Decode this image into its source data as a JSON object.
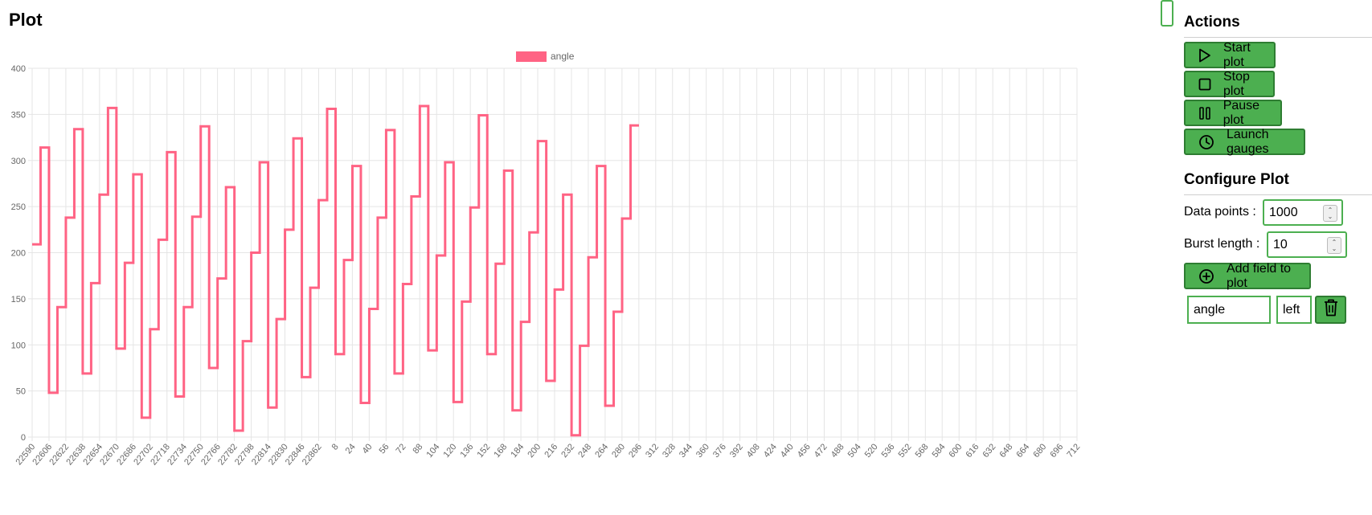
{
  "page": {
    "title": "Plot"
  },
  "chart_data": {
    "type": "line",
    "series": [
      {
        "name": "angle",
        "color": "#ff6384",
        "step": 8,
        "values": [
          209,
          314,
          48,
          141,
          238,
          334,
          69,
          167,
          263,
          357,
          96,
          189,
          285,
          21,
          117,
          214,
          309,
          44,
          141,
          239,
          337,
          75,
          172,
          271,
          7,
          104,
          200,
          298,
          32,
          128,
          225,
          324,
          65,
          162,
          257,
          356,
          90,
          192,
          294,
          37,
          139,
          238,
          333,
          69,
          166,
          261,
          359,
          94,
          197,
          298,
          38,
          147,
          249,
          349,
          90,
          188,
          289,
          29,
          125,
          222,
          321,
          61,
          160,
          263,
          2,
          99,
          195,
          294,
          34,
          136,
          237,
          338
        ]
      }
    ],
    "ylim": [
      0,
      400
    ],
    "yticks": [
      0,
      50,
      100,
      150,
      200,
      250,
      300,
      350,
      400
    ],
    "xtick_labels": [
      "22590",
      "22606",
      "22622",
      "22638",
      "22654",
      "22670",
      "22686",
      "22702",
      "22718",
      "22734",
      "22750",
      "22766",
      "22782",
      "22798",
      "22814",
      "22830",
      "22846",
      "22862",
      "8",
      "24",
      "40",
      "56",
      "72",
      "88",
      "104",
      "120",
      "136",
      "152",
      "168",
      "184",
      "200",
      "216",
      "232",
      "248",
      "264",
      "280",
      "296",
      "312",
      "328",
      "344",
      "360",
      "376",
      "392",
      "408",
      "424",
      "440",
      "456",
      "472",
      "488",
      "504",
      "520",
      "536",
      "552",
      "568",
      "584",
      "600",
      "616",
      "632",
      "648",
      "664",
      "680",
      "696",
      "712"
    ],
    "grid": true,
    "legend": "top-center"
  },
  "actions": {
    "title": "Actions",
    "buttons": [
      {
        "label": "Start plot",
        "icon": "play-icon"
      },
      {
        "label": "Stop plot",
        "icon": "stop-icon"
      },
      {
        "label": "Pause plot",
        "icon": "pause-icon"
      },
      {
        "label": "Launch gauges",
        "icon": "clock-icon"
      }
    ]
  },
  "configure": {
    "title": "Configure Plot",
    "data_points_label": "Data points :",
    "data_points_value": "1000",
    "burst_length_label": "Burst length :",
    "burst_length_value": "10",
    "add_field_label": "Add field to plot",
    "field_name": "angle",
    "field_axis": "left"
  }
}
